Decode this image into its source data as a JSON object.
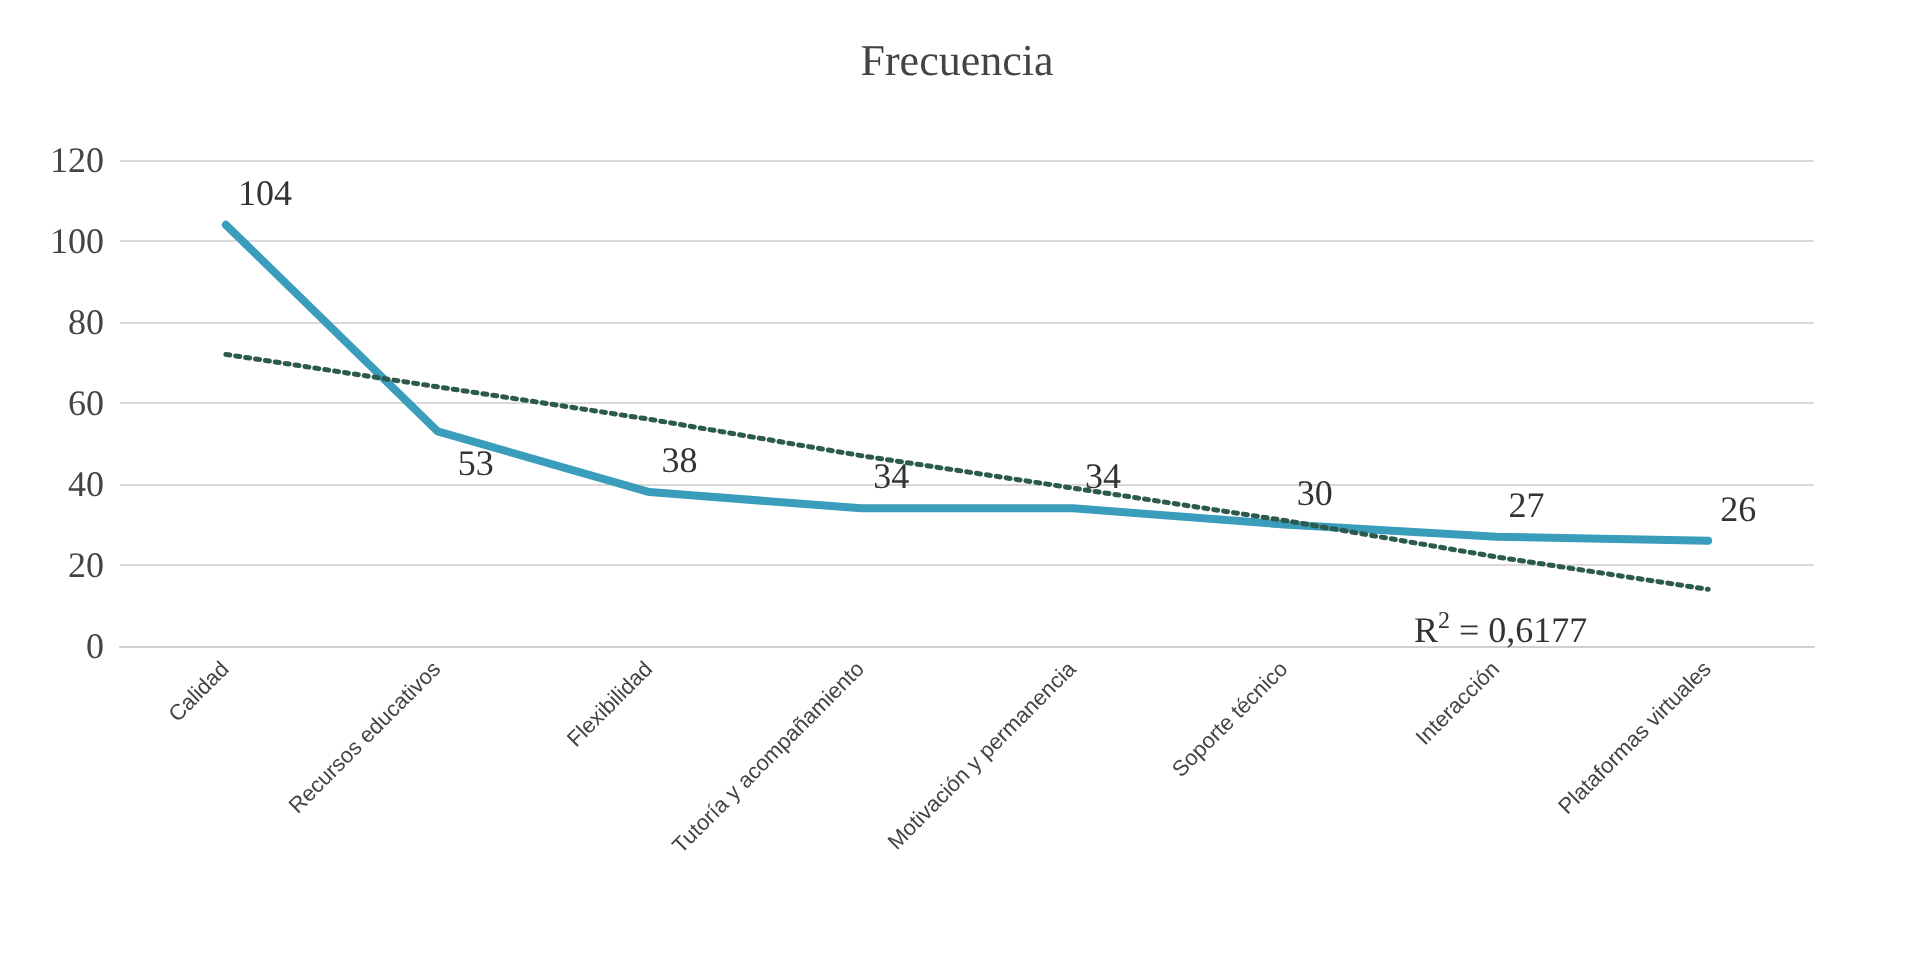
{
  "chart_data": {
    "type": "line",
    "title": "Frecuencia",
    "categories": [
      "Calidad",
      "Recursos educativos",
      "Flexibilidad",
      "Tutoría y acompañamiento",
      "Motivación y permanencia",
      "Soporte técnico",
      "Interacción",
      "Plataformas virtuales"
    ],
    "series": [
      {
        "color": "#3a9dbc",
        "values": [
          104,
          53,
          38,
          34,
          34,
          30,
          27,
          26
        ],
        "value_labels": [
          "104",
          "53",
          "38",
          "34",
          "34",
          "30",
          "27",
          "26"
        ],
        "marker": "none",
        "line_style": "solid"
      },
      {
        "type": "line",
        "color": "#2d5a4f",
        "x": [
          "Calidad",
          "Recursos educativos",
          "Flexibilidad",
          "Tutoría y acompañamiento",
          "Motivación y permanencia",
          "Soporte técnico",
          "Interacción",
          "Plataformas virtuales"
        ],
        "values": [
          72,
          64,
          56,
          47,
          39,
          31,
          22,
          14
        ],
        "marker": "none",
        "line_style": "dotted"
      }
    ],
    "annotations": [
      "R$^{2}$ = 0,6177"
    ],
    "ylim": [
      0,
      120
    ],
    "yticks": [
      0,
      20,
      40,
      60,
      80,
      100,
      120
    ],
    "grid": "y"
  }
}
